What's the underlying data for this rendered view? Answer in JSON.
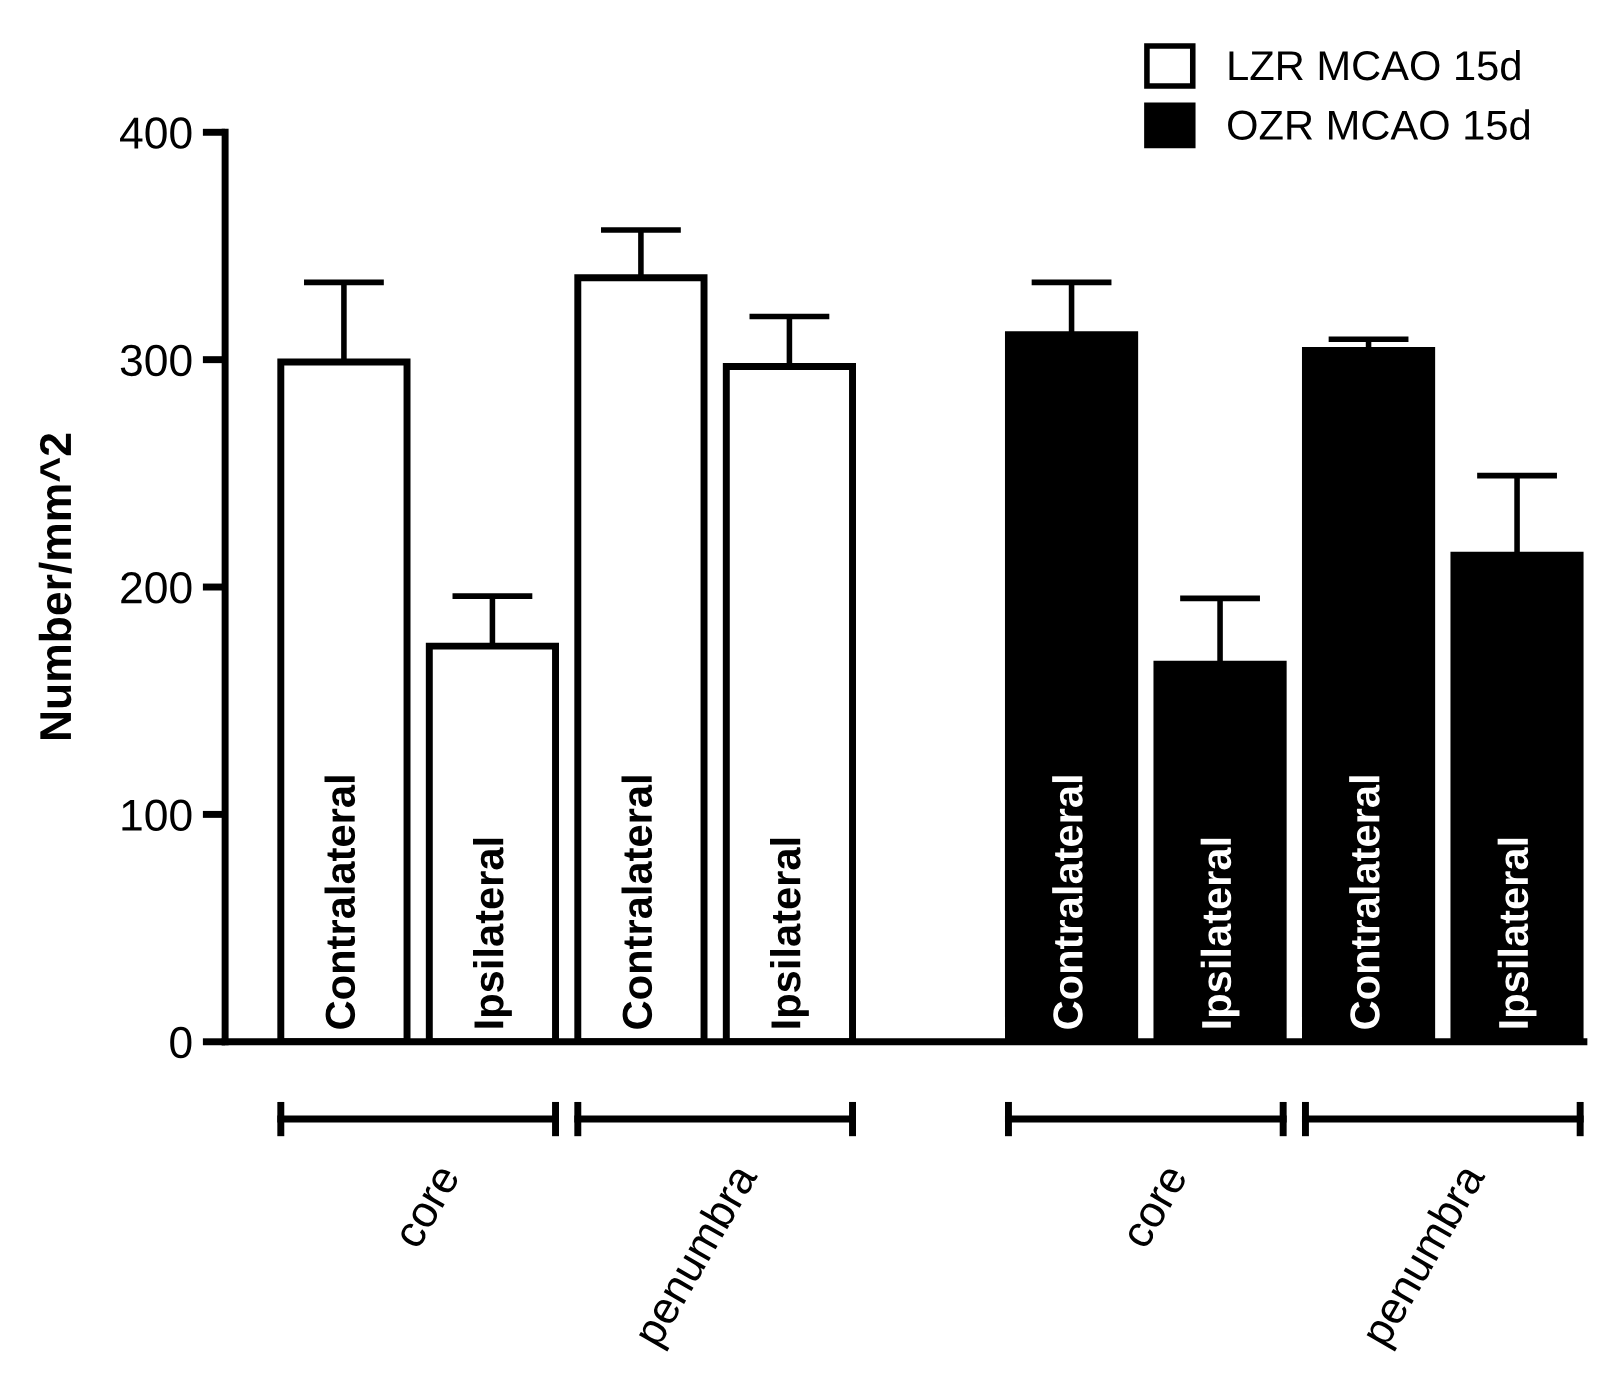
{
  "chart_data": {
    "type": "bar",
    "ylabel": "Number/mm^2",
    "categories": [
      "Contralateral",
      "Ipsilateral",
      "Contralateral",
      "Ipsilateral",
      "Contralateral",
      "Ipsilateral",
      "Contralateral",
      "Ipsilateral"
    ],
    "series": [
      {
        "name": "LZR MCAO 15d",
        "color": "#ffffff",
        "values": [
          299,
          174,
          336,
          297,
          null,
          null,
          null,
          null
        ],
        "errors": [
          [
            299,
            334
          ],
          [
            174,
            196
          ],
          [
            336,
            357
          ],
          [
            297,
            319
          ],
          null,
          null,
          null,
          null
        ]
      },
      {
        "name": "OZR MCAO 15d",
        "color": "#000000",
        "values": [
          null,
          null,
          null,
          null,
          311,
          166,
          304,
          214
        ],
        "errors": [
          null,
          null,
          null,
          null,
          [
            311,
            334
          ],
          [
            166,
            195
          ],
          [
            304,
            309
          ],
          [
            214,
            249
          ]
        ]
      }
    ],
    "annotations": [
      "core",
      "penumbra",
      "core",
      "penumbra"
    ],
    "ylim": [
      0,
      400
    ],
    "yticks": [
      0,
      100,
      200,
      300,
      400
    ],
    "grid": false,
    "legend": "top right"
  }
}
